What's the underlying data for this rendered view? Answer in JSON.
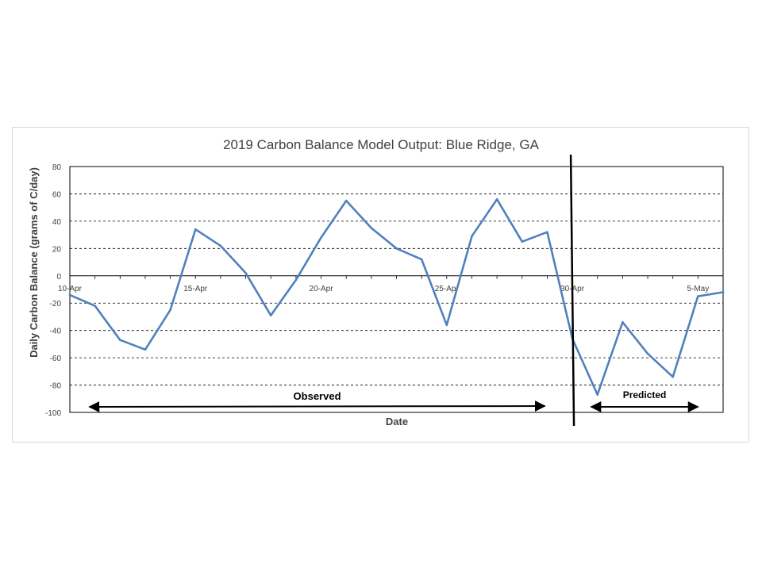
{
  "chart_data": {
    "type": "line",
    "title": "2019 Carbon Balance Model Output: Blue Ridge, GA",
    "xlabel": "Date",
    "ylabel": "Daily Carbon Balance (grams of C/day)",
    "ylim": [
      -100,
      80
    ],
    "yticks": [
      80,
      60,
      40,
      20,
      0,
      -20,
      -40,
      -60,
      -80,
      -100
    ],
    "y_tick_labels": [
      "80",
      "60",
      "40",
      "20",
      "0",
      "-20",
      "-40",
      "-60",
      "-80",
      "-100"
    ],
    "xlim": [
      "2019-04-10",
      "2019-05-06"
    ],
    "x_tick_labels": [
      "10-Apr",
      "15-Apr",
      "20-Apr",
      "25-Apr",
      "30-Apr",
      "5-May"
    ],
    "x_tick_dates": [
      "2019-04-10",
      "2019-04-15",
      "2019-04-20",
      "2019-04-25",
      "2019-04-30",
      "2019-05-05"
    ],
    "grid": "horizontal dashed",
    "series": [
      {
        "color": "#4f81bd",
        "x": [
          "2019-04-10",
          "2019-04-11",
          "2019-04-12",
          "2019-04-13",
          "2019-04-14",
          "2019-04-15",
          "2019-04-16",
          "2019-04-17",
          "2019-04-18",
          "2019-04-19",
          "2019-04-20",
          "2019-04-21",
          "2019-04-22",
          "2019-04-23",
          "2019-04-24",
          "2019-04-25",
          "2019-04-26",
          "2019-04-27",
          "2019-04-28",
          "2019-04-29",
          "2019-04-30",
          "2019-05-01",
          "2019-05-02",
          "2019-05-03",
          "2019-05-04",
          "2019-05-05",
          "2019-05-06"
        ],
        "values": [
          -14,
          -22,
          -47,
          -54,
          -25,
          34,
          22,
          2,
          -29,
          -3,
          28,
          55,
          35,
          20,
          12,
          -36,
          29,
          56,
          25,
          32,
          -46,
          -87,
          -34,
          -57,
          -74,
          -15,
          -12
        ]
      }
    ],
    "annotations": {
      "divider_date": "2019-04-30",
      "divider_color": "#000000",
      "observed": {
        "label": "Observed",
        "from": "2019-04-11",
        "to": "2019-04-29"
      },
      "predicted": {
        "label": "Predicted",
        "from": "2019-05-01",
        "to": "2019-05-05"
      }
    }
  }
}
